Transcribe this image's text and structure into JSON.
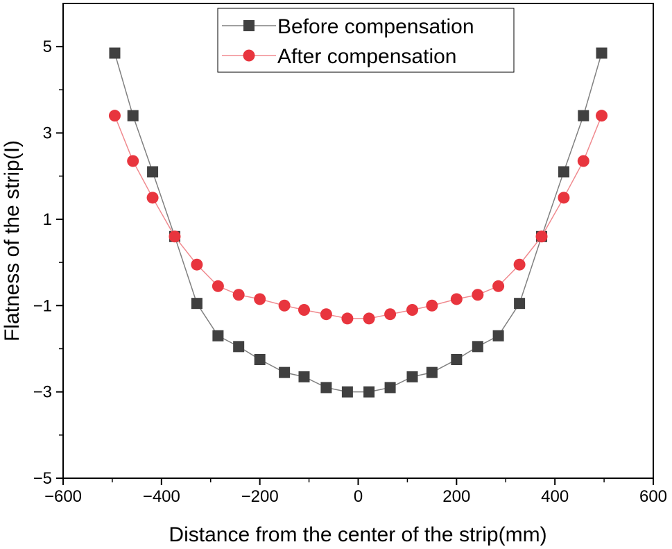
{
  "chart_data": {
    "type": "line",
    "title": "",
    "xlabel": "Distance from the center of the strip(mm)",
    "ylabel": "Flatness of the strip(I)",
    "xlim": [
      -600,
      600
    ],
    "ylim": [
      -5,
      6
    ],
    "xticks": [
      -600,
      -400,
      -200,
      0,
      200,
      400,
      600
    ],
    "xtick_labels": [
      "−600",
      "−400",
      "−200",
      "0",
      "200",
      "400",
      "600"
    ],
    "yticks": [
      -5,
      -3,
      -1,
      1,
      3,
      5
    ],
    "ytick_labels": [
      "−5",
      "−3",
      "−1",
      "1",
      "3",
      "5"
    ],
    "x": [
      -495,
      -458,
      -418,
      -373,
      -328,
      -285,
      -243,
      -200,
      -150,
      -110,
      -65,
      -22,
      22,
      65,
      110,
      150,
      200,
      243,
      285,
      328,
      373,
      418,
      458,
      495
    ],
    "series": [
      {
        "name": "Before compensation",
        "color": "#404040",
        "line_color": "#808080",
        "marker": "square",
        "values": [
          4.85,
          3.4,
          2.1,
          0.6,
          -0.95,
          -1.7,
          -1.95,
          -2.25,
          -2.55,
          -2.65,
          -2.9,
          -3.0,
          -3.0,
          -2.9,
          -2.65,
          -2.55,
          -2.25,
          -1.95,
          -1.7,
          -0.95,
          0.6,
          2.1,
          3.4,
          4.85
        ]
      },
      {
        "name": "After compensation",
        "color": "#e8353e",
        "line_color": "#f08a8f",
        "marker": "circle",
        "values": [
          3.4,
          2.35,
          1.5,
          0.6,
          -0.05,
          -0.55,
          -0.75,
          -0.85,
          -1.0,
          -1.1,
          -1.2,
          -1.3,
          -1.3,
          -1.2,
          -1.1,
          -1.0,
          -0.85,
          -0.75,
          -0.55,
          -0.05,
          0.6,
          1.5,
          2.35,
          3.4
        ]
      }
    ],
    "legend_position": "top-center",
    "grid": false
  }
}
